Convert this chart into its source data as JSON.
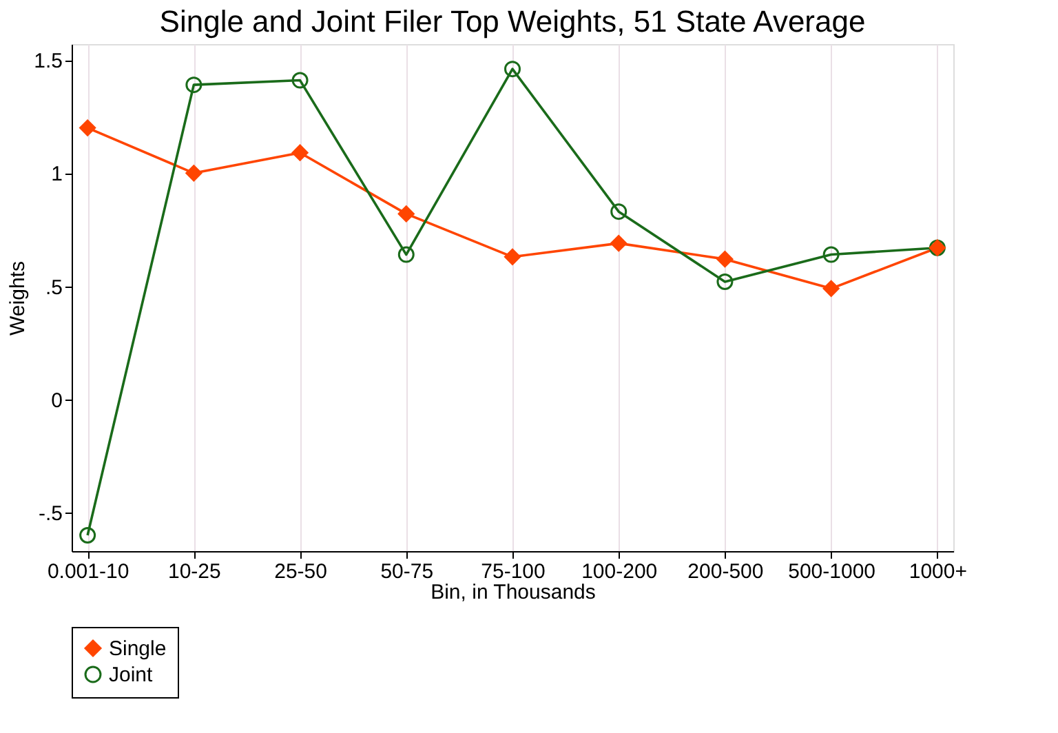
{
  "chart_data": {
    "type": "line",
    "title": "Single and Joint Filer Top Weights, 51 State Average",
    "xlabel": "Bin, in Thousands",
    "ylabel": "Weights",
    "categories": [
      "0.001-10",
      "10-25",
      "25-50",
      "50-75",
      "75-100",
      "100-200",
      "200-500",
      "500-1000",
      "1000+"
    ],
    "series": [
      {
        "name": "Single",
        "color": "#ff4500",
        "marker": "diamond",
        "values": [
          1.2,
          1.0,
          1.09,
          0.82,
          0.63,
          0.69,
          0.62,
          0.49,
          0.67
        ]
      },
      {
        "name": "Joint",
        "color": "#1a6b1a",
        "marker": "circle",
        "values": [
          -0.6,
          1.39,
          1.41,
          0.64,
          1.46,
          0.83,
          0.52,
          0.64,
          0.67
        ]
      }
    ],
    "ylim": [
      -0.67,
      1.57
    ],
    "yticks": [
      {
        "value": -0.5,
        "label": "-.5"
      },
      0,
      {
        "value": 0.5,
        "label": ".5"
      },
      1,
      1.5
    ],
    "grid": "x",
    "legend": "bottom",
    "line_style": "solid"
  }
}
